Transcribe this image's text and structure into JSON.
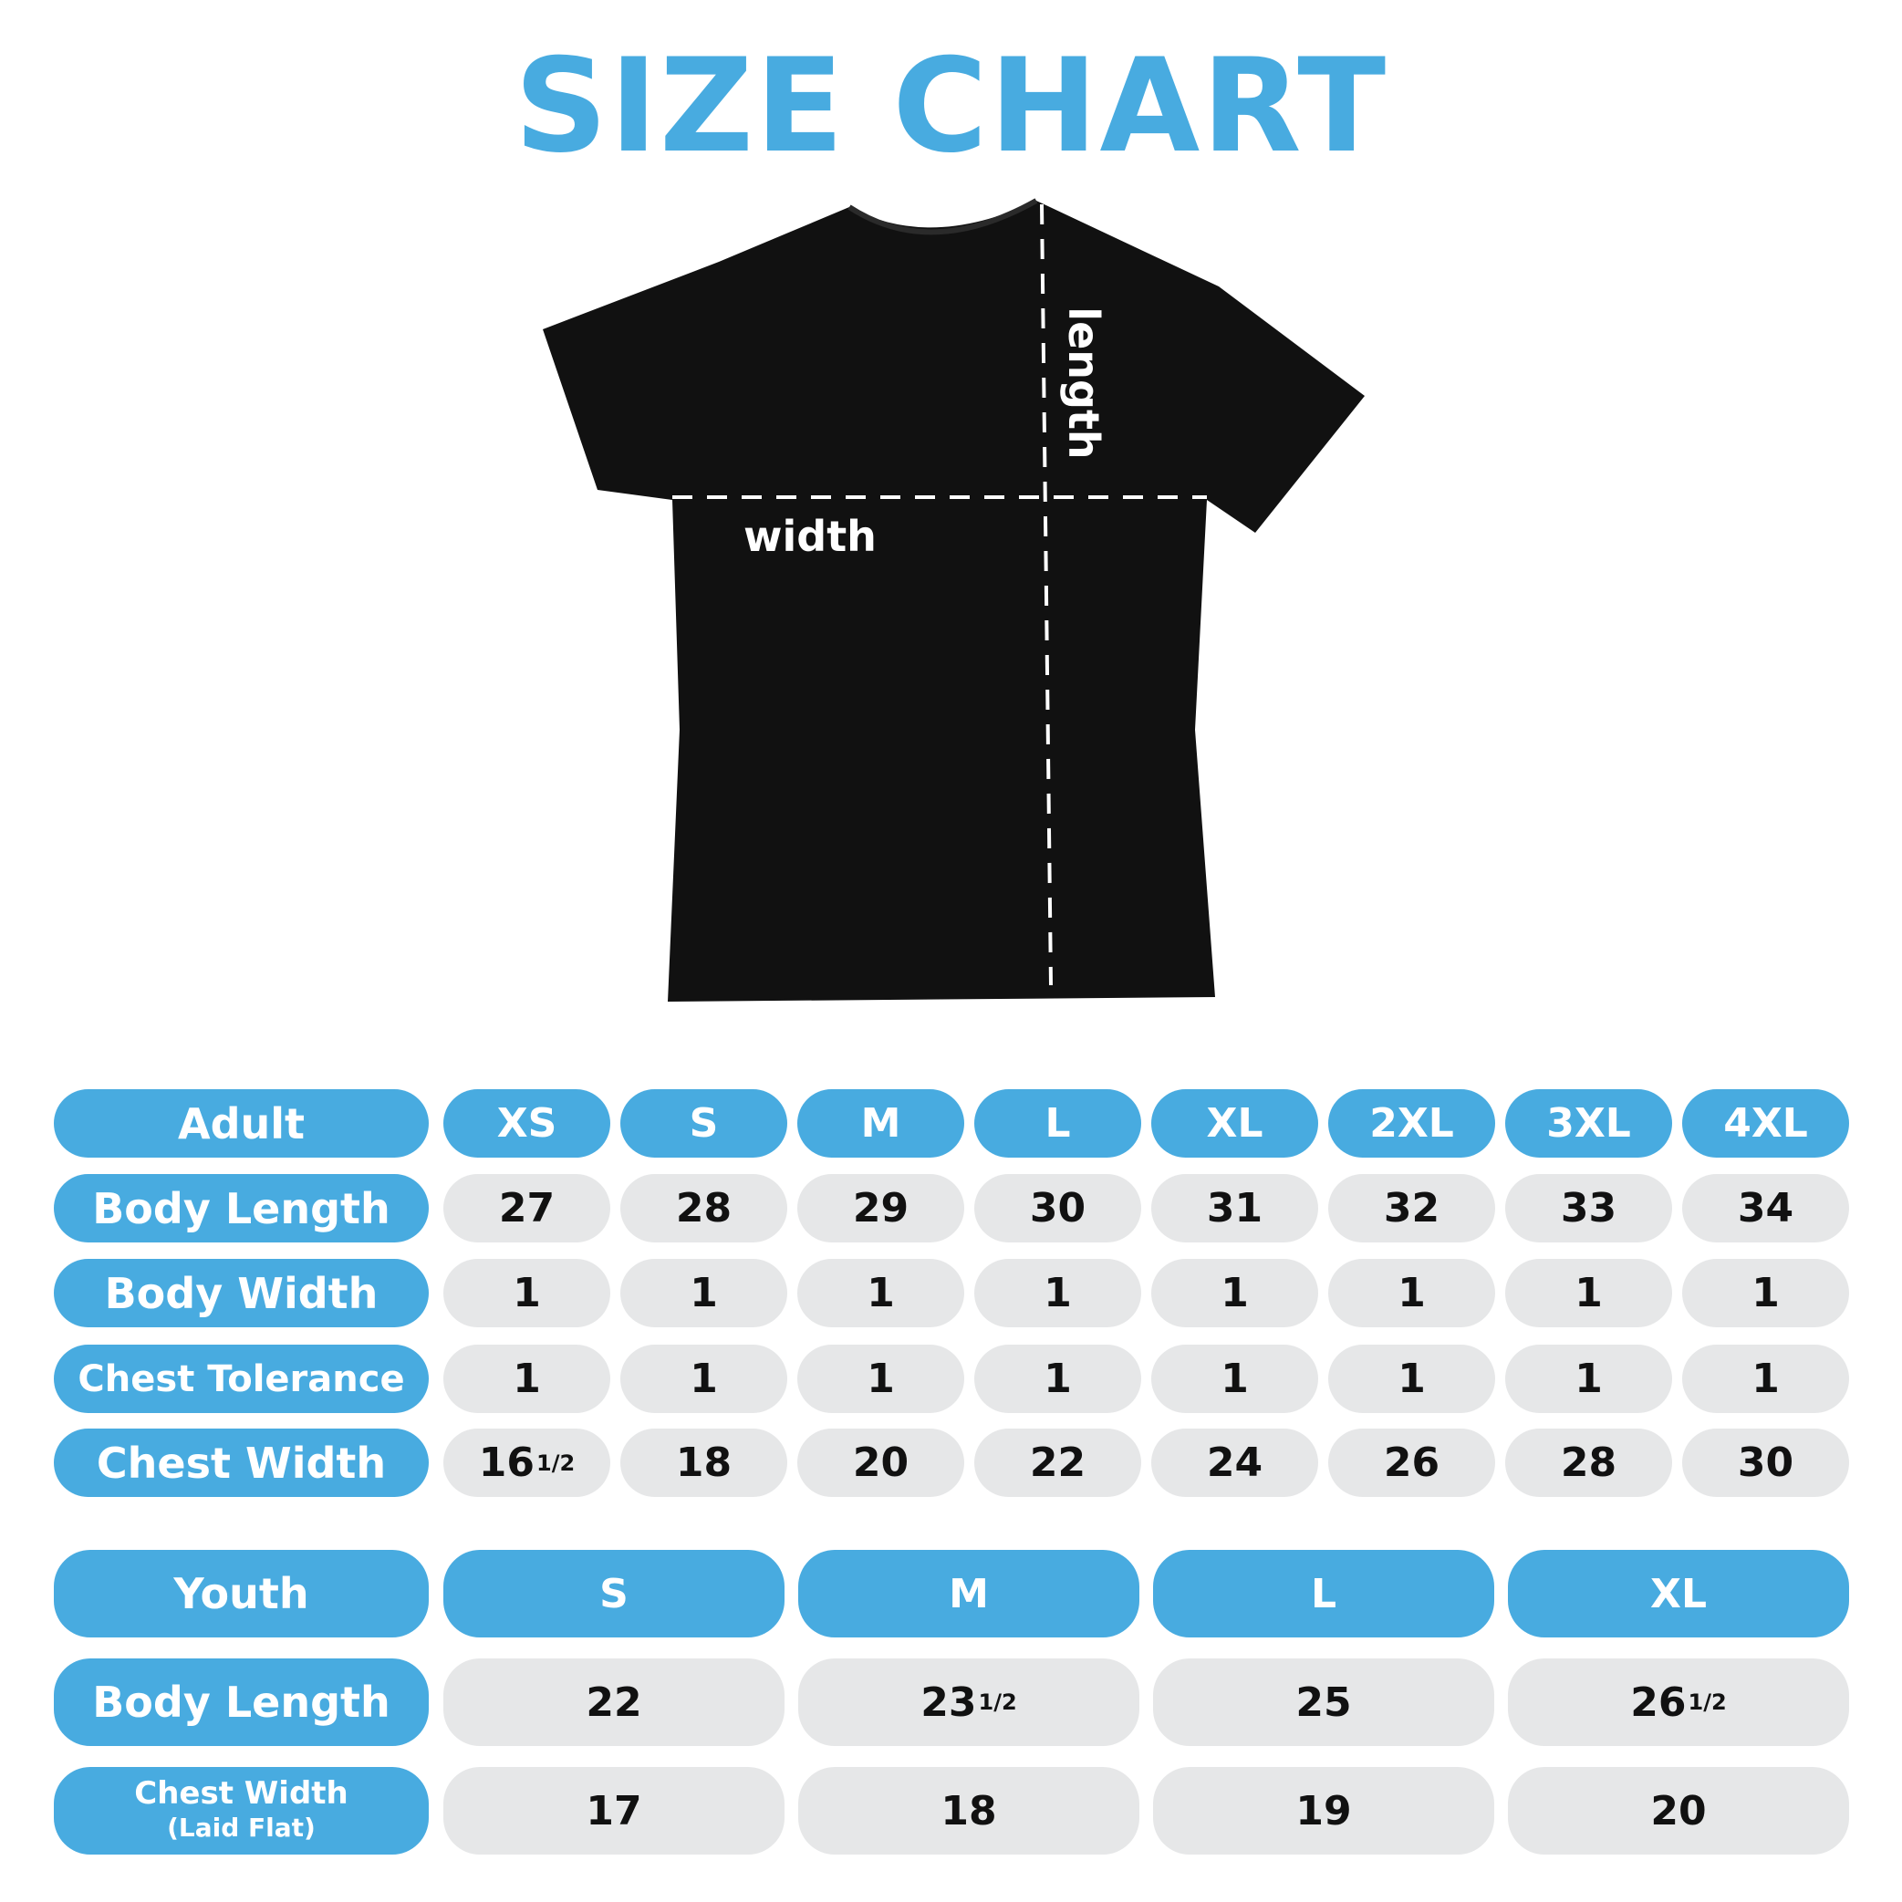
{
  "title": "SIZE CHART",
  "diagram": {
    "length_label": "length",
    "width_label": "width"
  },
  "colors": {
    "accent": "#48abe0",
    "cell": "#e6e7e8",
    "shirt": "#111111"
  },
  "adult": {
    "header": "Adult",
    "sizes": [
      "XS",
      "S",
      "M",
      "L",
      "XL",
      "2XL",
      "3XL",
      "4XL"
    ],
    "rows": [
      {
        "label": "Body Length",
        "values": [
          {
            "v": "27"
          },
          {
            "v": "28"
          },
          {
            "v": "29"
          },
          {
            "v": "30"
          },
          {
            "v": "31"
          },
          {
            "v": "32"
          },
          {
            "v": "33"
          },
          {
            "v": "34"
          }
        ]
      },
      {
        "label": "Body Width",
        "values": [
          {
            "v": "1"
          },
          {
            "v": "1"
          },
          {
            "v": "1"
          },
          {
            "v": "1"
          },
          {
            "v": "1"
          },
          {
            "v": "1"
          },
          {
            "v": "1"
          },
          {
            "v": "1"
          }
        ]
      },
      {
        "label": "Chest Tolerance",
        "values": [
          {
            "v": "1"
          },
          {
            "v": "1"
          },
          {
            "v": "1"
          },
          {
            "v": "1"
          },
          {
            "v": "1"
          },
          {
            "v": "1"
          },
          {
            "v": "1"
          },
          {
            "v": "1"
          }
        ]
      },
      {
        "label": "Chest Width",
        "values": [
          {
            "v": "16",
            "f": "1/2"
          },
          {
            "v": "18"
          },
          {
            "v": "20"
          },
          {
            "v": "22"
          },
          {
            "v": "24"
          },
          {
            "v": "26"
          },
          {
            "v": "28"
          },
          {
            "v": "30"
          }
        ]
      }
    ]
  },
  "youth": {
    "header": "Youth",
    "sizes": [
      "S",
      "M",
      "L",
      "XL"
    ],
    "rows": [
      {
        "label": "Body Length",
        "values": [
          {
            "v": "22"
          },
          {
            "v": "23",
            "f": "1/2"
          },
          {
            "v": "25"
          },
          {
            "v": "26",
            "f": "1/2"
          }
        ]
      },
      {
        "label": "Chest Width",
        "sublabel": "(Laid Flat)",
        "values": [
          {
            "v": "17"
          },
          {
            "v": "18"
          },
          {
            "v": "19"
          },
          {
            "v": "20"
          }
        ]
      }
    ]
  }
}
